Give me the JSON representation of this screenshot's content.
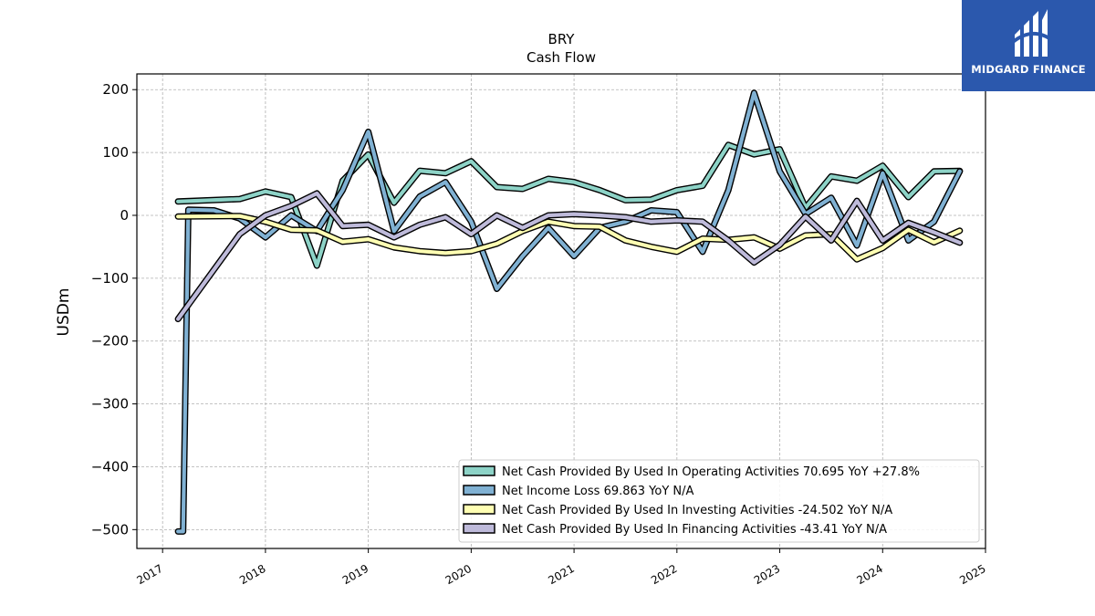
{
  "chart_data": {
    "type": "line",
    "title": "BRY",
    "subtitle": "Cash Flow",
    "ylabel": "USDm",
    "xlabel": "",
    "xlim": [
      2016.75,
      2025.0
    ],
    "ylim": [
      -530,
      225
    ],
    "x_ticks": [
      2017,
      2018,
      2019,
      2020,
      2021,
      2022,
      2023,
      2024,
      2025
    ],
    "y_ticks": [
      200,
      100,
      0,
      -100,
      -200,
      -300,
      -400,
      -500
    ],
    "y_tick_labels": [
      "200",
      "100",
      "0",
      "−100",
      "−200",
      "−300",
      "−400",
      "−500"
    ],
    "grid": true,
    "legend_position": "lower-right",
    "series": [
      {
        "name": "Net Cash Provided By Used In Operating Activities  70.695 YoY +27.8%",
        "color": "#8dd3c7",
        "points": [
          [
            2017.15,
            22
          ],
          [
            2017.75,
            26
          ],
          [
            2018.0,
            38
          ],
          [
            2018.25,
            29
          ],
          [
            2018.5,
            -80
          ],
          [
            2018.75,
            55
          ],
          [
            2019.0,
            97
          ],
          [
            2019.25,
            20
          ],
          [
            2019.5,
            71
          ],
          [
            2019.75,
            67
          ],
          [
            2020.0,
            86
          ],
          [
            2020.25,
            45
          ],
          [
            2020.5,
            42
          ],
          [
            2020.75,
            58
          ],
          [
            2021.0,
            53
          ],
          [
            2021.25,
            40
          ],
          [
            2021.5,
            24
          ],
          [
            2021.75,
            25
          ],
          [
            2022.0,
            40
          ],
          [
            2022.25,
            47
          ],
          [
            2022.5,
            112
          ],
          [
            2022.75,
            97
          ],
          [
            2023.0,
            105
          ],
          [
            2023.25,
            12
          ],
          [
            2023.5,
            62
          ],
          [
            2023.75,
            55
          ],
          [
            2024.0,
            79
          ],
          [
            2024.25,
            29
          ],
          [
            2024.5,
            70
          ],
          [
            2024.75,
            70.695
          ]
        ]
      },
      {
        "name": "Net Income Loss  69.863 YoY N/A",
        "color": "#80b1d3",
        "points": [
          [
            2017.15,
            -503
          ],
          [
            2017.2,
            -503
          ],
          [
            2017.25,
            9
          ],
          [
            2017.5,
            8
          ],
          [
            2017.75,
            -5
          ],
          [
            2018.0,
            -35
          ],
          [
            2018.25,
            0
          ],
          [
            2018.5,
            -25
          ],
          [
            2018.75,
            40
          ],
          [
            2019.0,
            133
          ],
          [
            2019.25,
            -25
          ],
          [
            2019.5,
            30
          ],
          [
            2019.75,
            53
          ],
          [
            2020.0,
            -10
          ],
          [
            2020.25,
            -117
          ],
          [
            2020.5,
            -65
          ],
          [
            2020.75,
            -20
          ],
          [
            2021.0,
            -65
          ],
          [
            2021.25,
            -20
          ],
          [
            2021.5,
            -10
          ],
          [
            2021.75,
            8
          ],
          [
            2022.0,
            5
          ],
          [
            2022.25,
            -58
          ],
          [
            2022.5,
            40
          ],
          [
            2022.75,
            195
          ],
          [
            2023.0,
            70
          ],
          [
            2023.25,
            2
          ],
          [
            2023.5,
            28
          ],
          [
            2023.75,
            -48
          ],
          [
            2024.0,
            67
          ],
          [
            2024.25,
            -40
          ],
          [
            2024.5,
            -10
          ],
          [
            2024.75,
            69.863
          ]
        ]
      },
      {
        "name": "Net Cash Provided By Used In Investing Activities  -24.502 YoY N/A",
        "color": "#ffffb3",
        "points": [
          [
            2017.15,
            -2
          ],
          [
            2017.75,
            -1
          ],
          [
            2018.0,
            -10
          ],
          [
            2018.25,
            -23
          ],
          [
            2018.5,
            -24
          ],
          [
            2018.75,
            -42
          ],
          [
            2019.0,
            -38
          ],
          [
            2019.25,
            -51
          ],
          [
            2019.5,
            -57
          ],
          [
            2019.75,
            -60
          ],
          [
            2020.0,
            -57
          ],
          [
            2020.25,
            -45
          ],
          [
            2020.5,
            -25
          ],
          [
            2020.75,
            -10
          ],
          [
            2021.0,
            -17
          ],
          [
            2021.25,
            -18
          ],
          [
            2021.5,
            -40
          ],
          [
            2021.75,
            -50
          ],
          [
            2022.0,
            -58
          ],
          [
            2022.25,
            -37
          ],
          [
            2022.5,
            -39
          ],
          [
            2022.75,
            -35
          ],
          [
            2023.0,
            -53
          ],
          [
            2023.25,
            -32
          ],
          [
            2023.5,
            -30
          ],
          [
            2023.75,
            -70
          ],
          [
            2024.0,
            -52
          ],
          [
            2024.25,
            -23
          ],
          [
            2024.5,
            -43
          ],
          [
            2024.75,
            -24.502
          ]
        ]
      },
      {
        "name": "Net Cash Provided By Used In Financing Activities  -43.41 YoY N/A",
        "color": "#bebada",
        "points": [
          [
            2017.15,
            -165
          ],
          [
            2017.75,
            -30
          ],
          [
            2018.0,
            0
          ],
          [
            2018.25,
            15
          ],
          [
            2018.5,
            35
          ],
          [
            2018.75,
            -17
          ],
          [
            2019.0,
            -15
          ],
          [
            2019.25,
            -35
          ],
          [
            2019.5,
            -15
          ],
          [
            2019.75,
            -3
          ],
          [
            2020.0,
            -30
          ],
          [
            2020.25,
            0
          ],
          [
            2020.5,
            -20
          ],
          [
            2020.75,
            0
          ],
          [
            2021.0,
            2
          ],
          [
            2021.25,
            0
          ],
          [
            2021.5,
            -3
          ],
          [
            2021.75,
            -10
          ],
          [
            2022.0,
            -8
          ],
          [
            2022.25,
            -10
          ],
          [
            2022.5,
            -40
          ],
          [
            2022.75,
            -75
          ],
          [
            2023.0,
            -47
          ],
          [
            2023.25,
            -2
          ],
          [
            2023.5,
            -40
          ],
          [
            2023.75,
            23
          ],
          [
            2024.0,
            -40
          ],
          [
            2024.25,
            -12
          ],
          [
            2024.5,
            -27
          ],
          [
            2024.75,
            -43.41
          ]
        ]
      }
    ]
  },
  "logo": {
    "text": "MIDGARD FINANCE",
    "background": "#2b58ad"
  }
}
